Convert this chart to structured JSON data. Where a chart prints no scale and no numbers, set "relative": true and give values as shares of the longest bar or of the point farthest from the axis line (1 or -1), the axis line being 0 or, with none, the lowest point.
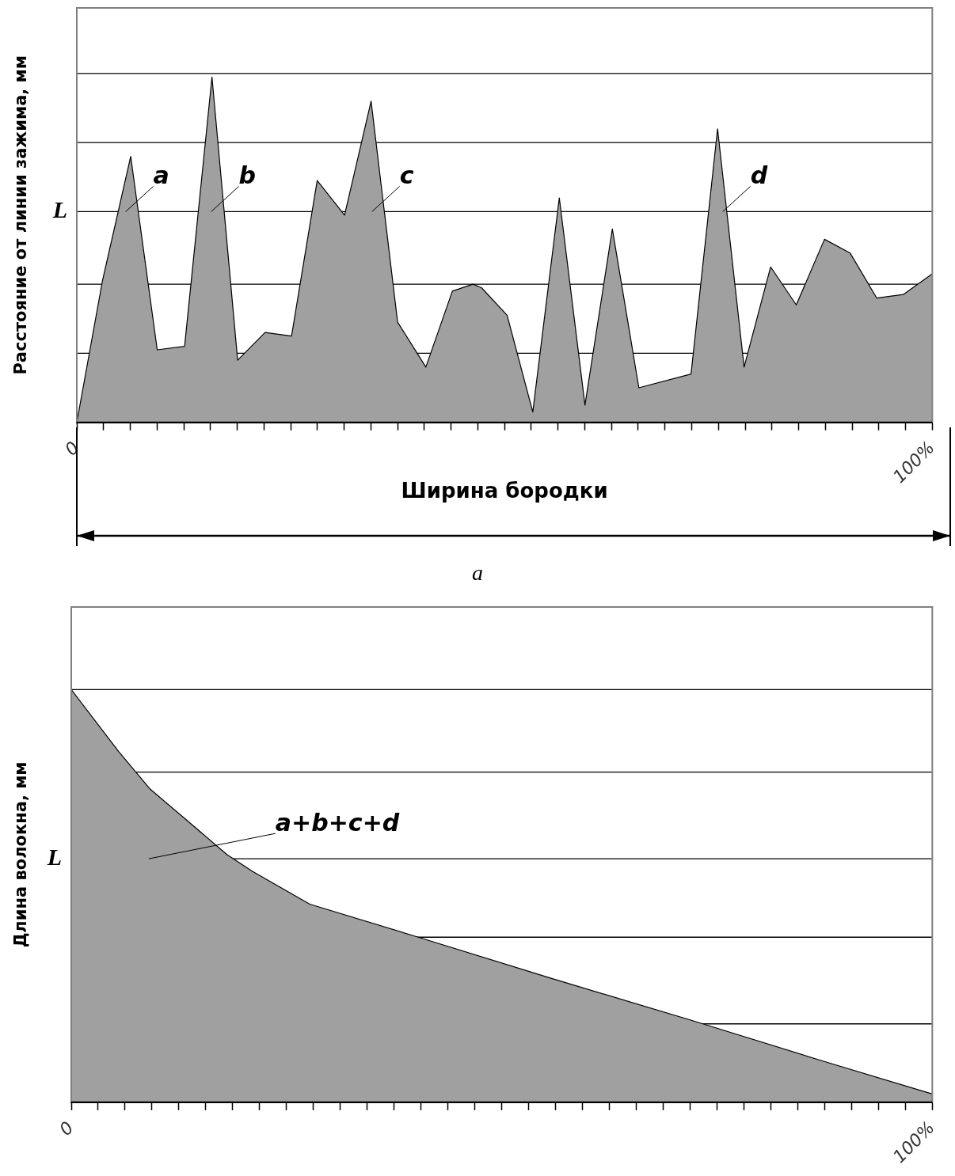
{
  "chart_data": [
    {
      "type": "area",
      "relative": true,
      "xlabel": "Ширина бородки",
      "ylabel": "Расстояние от линии зажима, мм",
      "x": [
        0,
        3.0,
        6.3,
        9.4,
        12.6,
        15.8,
        18.8,
        22.0,
        25.1,
        28.1,
        31.3,
        34.4,
        37.5,
        40.8,
        43.9,
        46.3,
        47.3,
        50.3,
        53.3,
        56.4,
        59.4,
        62.6,
        65.7,
        71.8,
        74.9,
        78.0,
        81.1,
        84.1,
        87.4,
        90.4,
        93.5,
        96.6,
        100
      ],
      "series": [
        {
          "color": "#a0a0a0",
          "values": [
            0,
            0.41,
            0.77,
            0.21,
            0.22,
            1.0,
            0.18,
            0.26,
            0.25,
            0.7,
            0.6,
            0.93,
            0.29,
            0.16,
            0.38,
            0.4,
            0.39,
            0.31,
            0.03,
            0.65,
            0.05,
            0.56,
            0.1,
            0.14,
            0.85,
            0.16,
            0.45,
            0.34,
            0.53,
            0.49,
            0.36,
            0.37,
            0.43
          ]
        }
      ],
      "xlim": [
        0,
        100
      ],
      "xticks": [
        {
          "value": 0,
          "label": "0"
        },
        {
          "value": 3.125,
          "label": null
        },
        {
          "value": 6.25,
          "label": null
        },
        {
          "value": 9.375,
          "label": null
        },
        {
          "value": 12.5,
          "label": null
        },
        {
          "value": 15.625,
          "label": null
        },
        {
          "value": 18.75,
          "label": null
        },
        {
          "value": 21.875,
          "label": null
        },
        {
          "value": 25,
          "label": null
        },
        {
          "value": 28.125,
          "label": null
        },
        {
          "value": 31.25,
          "label": null
        },
        {
          "value": 34.375,
          "label": null
        },
        {
          "value": 37.5,
          "label": null
        },
        {
          "value": 40.625,
          "label": null
        },
        {
          "value": 43.75,
          "label": null
        },
        {
          "value": 46.875,
          "label": null
        },
        {
          "value": 50,
          "label": null
        },
        {
          "value": 53.125,
          "label": null
        },
        {
          "value": 56.25,
          "label": null
        },
        {
          "value": 59.375,
          "label": null
        },
        {
          "value": 62.5,
          "label": null
        },
        {
          "value": 65.625,
          "label": null
        },
        {
          "value": 68.75,
          "label": null
        },
        {
          "value": 71.875,
          "label": null
        },
        {
          "value": 75,
          "label": null
        },
        {
          "value": 78.125,
          "label": null
        },
        {
          "value": 81.25,
          "label": null
        },
        {
          "value": 84.375,
          "label": null
        },
        {
          "value": 87.5,
          "label": null
        },
        {
          "value": 90.625,
          "label": null
        },
        {
          "value": 93.75,
          "label": null
        },
        {
          "value": 96.875,
          "label": null
        },
        {
          "value": 100,
          "label": "100%"
        }
      ],
      "ref_lines": [
        {
          "axis": "y",
          "value": 0.2,
          "color": "#000000"
        },
        {
          "axis": "y",
          "value": 0.4,
          "color": "#000000"
        },
        {
          "axis": "y",
          "value": 0.61,
          "color": "#000000",
          "label": "L"
        },
        {
          "axis": "y",
          "value": 0.81,
          "color": "#000000"
        },
        {
          "axis": "y",
          "value": 1.01,
          "color": "#000000"
        }
      ],
      "annotations": [
        {
          "text": "a",
          "x": 5.7,
          "y": 0.61
        },
        {
          "text": "b",
          "x": 15.7,
          "y": 0.61
        },
        {
          "text": "c",
          "x": 34.5,
          "y": 0.61
        },
        {
          "text": "d",
          "x": 75.5,
          "y": 0.61
        },
        "a"
      ]
    },
    {
      "type": "area",
      "relative": true,
      "ylabel": "Длина волокна, мм",
      "x": [
        0,
        5.5,
        9.1,
        18.1,
        21.0,
        27.7,
        40.3,
        55.8,
        71.8,
        87.3,
        100
      ],
      "series": [
        {
          "color": "#a0a0a0",
          "values": [
            1.0,
            0.85,
            0.76,
            0.6,
            0.56,
            0.48,
            0.4,
            0.3,
            0.2,
            0.1,
            0.02
          ]
        }
      ],
      "xlim": [
        0,
        100
      ],
      "xticks": [
        {
          "value": 0,
          "label": "0"
        },
        {
          "value": 3.125,
          "label": null
        },
        {
          "value": 6.25,
          "label": null
        },
        {
          "value": 9.375,
          "label": null
        },
        {
          "value": 12.5,
          "label": null
        },
        {
          "value": 15.625,
          "label": null
        },
        {
          "value": 18.75,
          "label": null
        },
        {
          "value": 21.875,
          "label": null
        },
        {
          "value": 25,
          "label": null
        },
        {
          "value": 28.125,
          "label": null
        },
        {
          "value": 31.25,
          "label": null
        },
        {
          "value": 34.375,
          "label": null
        },
        {
          "value": 37.5,
          "label": null
        },
        {
          "value": 40.625,
          "label": null
        },
        {
          "value": 43.75,
          "label": null
        },
        {
          "value": 46.875,
          "label": null
        },
        {
          "value": 50,
          "label": null
        },
        {
          "value": 53.125,
          "label": null
        },
        {
          "value": 56.25,
          "label": null
        },
        {
          "value": 59.375,
          "label": null
        },
        {
          "value": 62.5,
          "label": null
        },
        {
          "value": 65.625,
          "label": null
        },
        {
          "value": 68.75,
          "label": null
        },
        {
          "value": 71.875,
          "label": null
        },
        {
          "value": 75,
          "label": null
        },
        {
          "value": 78.125,
          "label": null
        },
        {
          "value": 81.25,
          "label": null
        },
        {
          "value": 84.375,
          "label": null
        },
        {
          "value": 87.5,
          "label": null
        },
        {
          "value": 90.625,
          "label": null
        },
        {
          "value": 93.75,
          "label": null
        },
        {
          "value": 96.875,
          "label": null
        },
        {
          "value": 100,
          "label": "100%"
        }
      ],
      "ref_lines": [
        {
          "axis": "y",
          "value": 0.19,
          "color": "#000000"
        },
        {
          "axis": "y",
          "value": 0.4,
          "color": "#000000"
        },
        {
          "axis": "y",
          "value": 0.59,
          "color": "#000000",
          "label": "L"
        },
        {
          "axis": "y",
          "value": 0.8,
          "color": "#000000"
        },
        {
          "axis": "y",
          "value": 1.0,
          "color": "#000000"
        }
      ],
      "annotations": [
        {
          "text": "a+b+c+d",
          "x": 9,
          "y": 0.59
        }
      ]
    }
  ]
}
